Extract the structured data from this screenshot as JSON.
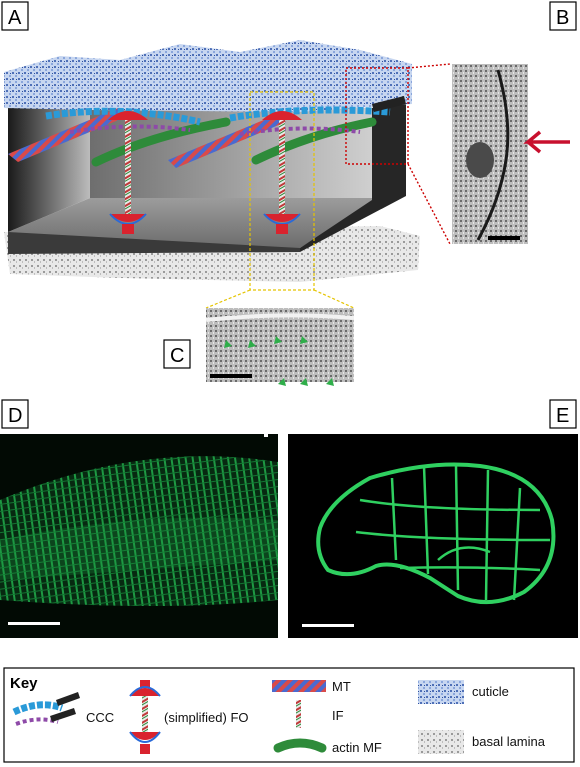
{
  "panels": {
    "a": "A",
    "b": "B",
    "c": "C",
    "d": "D",
    "e": "E"
  },
  "key": {
    "title": "Key",
    "ccc": "CCC",
    "fo": "(simplified) FO",
    "mt": "MT",
    "if": "IF",
    "actin": "actin MF",
    "cuticle": "cuticle",
    "basal": "basal lamina"
  },
  "colors": {
    "cuticle": "#7f9fd6",
    "basal": "#9a9a9a",
    "fo": "#d9232e",
    "actin": "#2e8b3a",
    "mt": "#d94a4a",
    "ccc_blue": "#2a9ad8",
    "ccc_purple": "#8e4aa8",
    "fluor": "#2fd060",
    "arrow": "#c8102e",
    "guide_red": "#cc0000",
    "guide_yellow": "#e5c400"
  }
}
